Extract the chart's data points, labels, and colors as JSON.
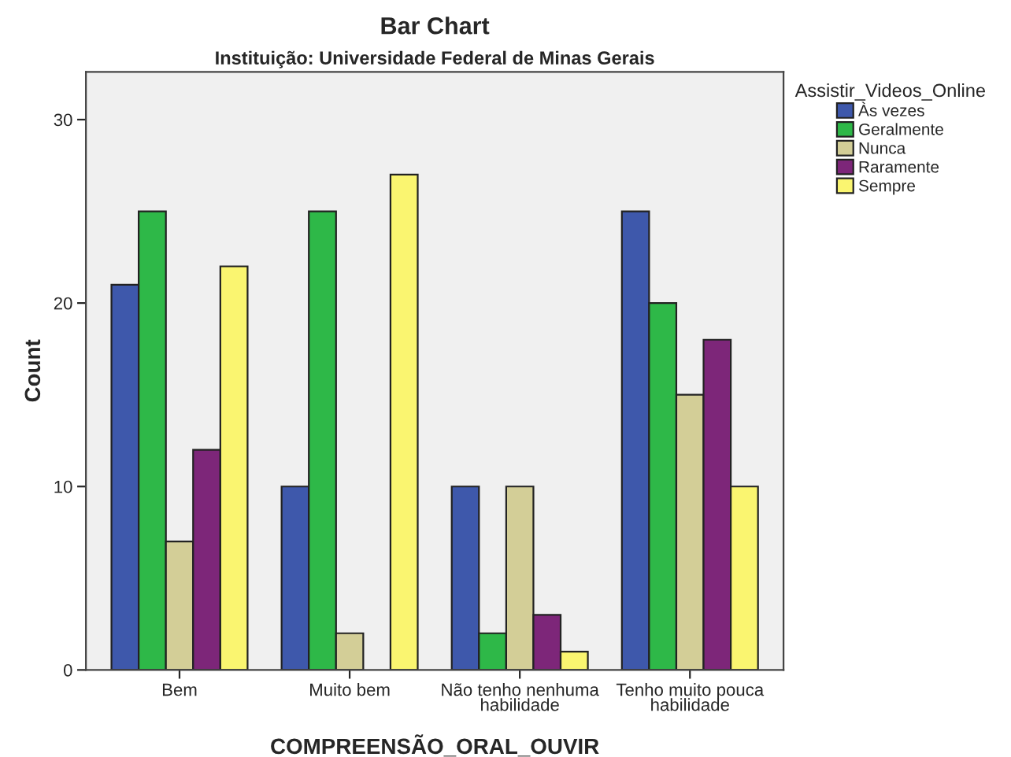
{
  "chart_data": {
    "type": "bar",
    "title": "Bar Chart",
    "subtitle": "Instituição: Universidade Federal de Minas Gerais",
    "xlabel": "COMPREENSÃO_ORAL_OUVIR",
    "ylabel": "Count",
    "legend_title": "Assistir_Videos_Online",
    "categories": [
      "Bem",
      "Muito bem",
      "Não tenho nenhuma\nhabilidade",
      "Tenho muito pouca\nhabilidade"
    ],
    "series": [
      {
        "name": "Às vezes",
        "color": "#3e58ab",
        "values": [
          21,
          10,
          10,
          25
        ]
      },
      {
        "name": "Geralmente",
        "color": "#2eb848",
        "values": [
          25,
          25,
          2,
          20
        ]
      },
      {
        "name": "Nunca",
        "color": "#d3ce97",
        "values": [
          7,
          2,
          10,
          15
        ]
      },
      {
        "name": "Raramente",
        "color": "#7d2679",
        "values": [
          12,
          null,
          3,
          18
        ]
      },
      {
        "name": "Sempre",
        "color": "#faf570",
        "values": [
          22,
          27,
          1,
          10
        ]
      }
    ],
    "ylim": [
      0,
      32.6
    ],
    "yticks": [
      0,
      10,
      20,
      30
    ],
    "grid": false,
    "legend": "top right"
  }
}
